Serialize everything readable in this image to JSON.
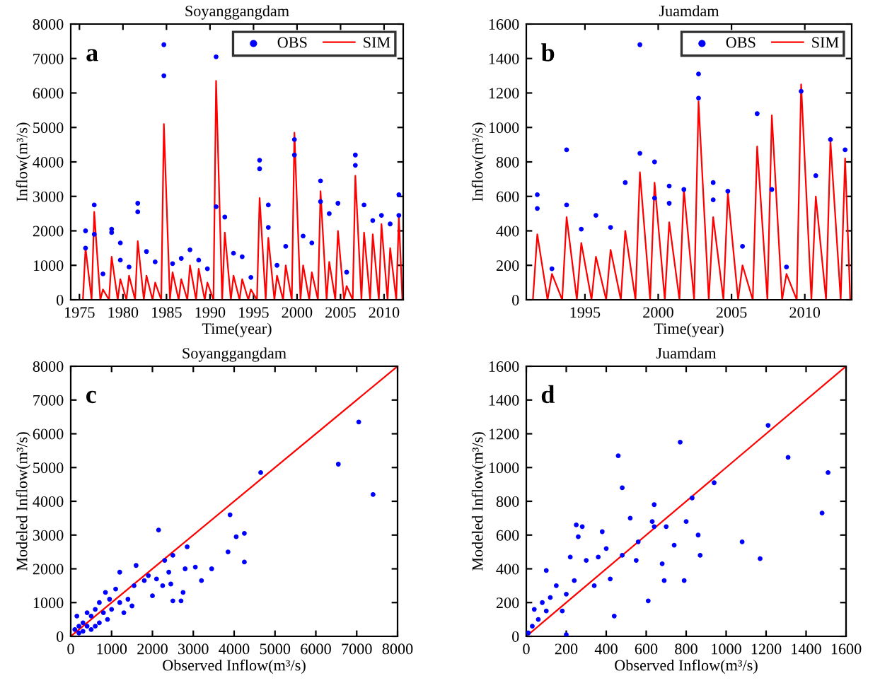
{
  "chart_data": [
    {
      "type": "line",
      "title": "Soyanggangdam",
      "xlabel": "Time(year)",
      "ylabel": "Inflow(m³/s)",
      "xlim": [
        1974,
        2012.2
      ],
      "xticks": [
        1975,
        1980,
        1985,
        1990,
        1995,
        2000,
        2005,
        2010
      ],
      "ylim": [
        0,
        8000
      ],
      "yticks": [
        0,
        1000,
        2000,
        3000,
        4000,
        5000,
        6000,
        7000,
        8000
      ],
      "grid": false,
      "legend": "top right",
      "annotations": [
        "a"
      ],
      "series": [
        {
          "name": "OBS",
          "type": "scatter",
          "color": "#0000ff",
          "marker": "circle",
          "x": [
            1975.7,
            1975.7,
            1976.7,
            1976.7,
            1977.7,
            1978.7,
            1978.7,
            1979.7,
            1979.7,
            1980.7,
            1981.7,
            1981.7,
            1982.7,
            1983.7,
            1984.7,
            1984.7,
            1985.7,
            1986.7,
            1987.7,
            1988.7,
            1989.7,
            1990.7,
            1990.7,
            1991.7,
            1992.7,
            1993.7,
            1994.7,
            1995.7,
            1995.7,
            1996.7,
            1996.7,
            1997.7,
            1998.7,
            1999.7,
            1999.7,
            2000.7,
            2001.7,
            2002.7,
            2002.7,
            2003.7,
            2004.7,
            2005.7,
            2006.7,
            2006.7,
            2007.7,
            2008.7,
            2009.7,
            2010.7,
            2011.7,
            2011.7
          ],
          "values": [
            2000,
            1500,
            2750,
            1900,
            750,
            2050,
            1950,
            1650,
            1150,
            950,
            2800,
            2550,
            1400,
            1100,
            7400,
            6500,
            1050,
            1200,
            1450,
            1150,
            900,
            7050,
            2700,
            2400,
            1350,
            1250,
            650,
            4050,
            3800,
            2750,
            2100,
            1000,
            1550,
            4650,
            4200,
            1850,
            1650,
            3450,
            2850,
            2500,
            2800,
            800,
            4200,
            3900,
            2750,
            2300,
            2450,
            2200,
            3050,
            2450
          ]
        },
        {
          "name": "SIM",
          "color": "#ff0000",
          "marker": "none",
          "x": [
            1975.4,
            1975.7,
            1976.4,
            1976.7,
            1977.4,
            1977.7,
            1978.4,
            1978.7,
            1979.4,
            1979.7,
            1980.4,
            1980.7,
            1981.4,
            1981.7,
            1982.4,
            1982.7,
            1983.4,
            1983.7,
            1984.4,
            1984.7,
            1985.4,
            1985.7,
            1986.4,
            1986.7,
            1987.4,
            1987.7,
            1988.4,
            1988.7,
            1989.4,
            1989.7,
            1990.4,
            1990.7,
            1991.4,
            1991.7,
            1992.4,
            1992.7,
            1993.4,
            1993.7,
            1994.4,
            1994.7,
            1995.4,
            1995.7,
            1996.4,
            1996.7,
            1997.4,
            1997.7,
            1998.4,
            1998.7,
            1999.4,
            1999.7,
            2000.4,
            2000.7,
            2001.4,
            2001.7,
            2002.4,
            2002.7,
            2003.4,
            2003.7,
            2004.4,
            2004.7,
            2005.4,
            2005.7,
            2006.4,
            2006.7,
            2007.4,
            2007.7,
            2008.4,
            2008.7,
            2009.4,
            2009.7,
            2010.4,
            2010.7,
            2011.4,
            2011.7,
            2012.1
          ],
          "values": [
            0,
            1500,
            0,
            2550,
            0,
            300,
            0,
            1250,
            0,
            600,
            0,
            700,
            0,
            1700,
            0,
            700,
            0,
            500,
            0,
            5100,
            0,
            800,
            0,
            600,
            0,
            1000,
            0,
            900,
            0,
            500,
            0,
            6350,
            0,
            1950,
            0,
            700,
            0,
            600,
            0,
            300,
            0,
            2950,
            0,
            1800,
            0,
            700,
            0,
            1000,
            0,
            4850,
            0,
            1000,
            0,
            800,
            0,
            3150,
            0,
            1100,
            0,
            2000,
            0,
            400,
            0,
            3600,
            0,
            1950,
            0,
            1900,
            0,
            2200,
            0,
            1500,
            0,
            2400,
            0
          ]
        }
      ]
    },
    {
      "type": "line",
      "title": "Juamdam",
      "xlabel": "Time(year)",
      "ylabel": "Inflow(m³/s)",
      "xlim": [
        1991,
        2013.2
      ],
      "xticks": [
        1995,
        2000,
        2005,
        2010
      ],
      "ylim": [
        0,
        1600
      ],
      "yticks": [
        0,
        200,
        400,
        600,
        800,
        1000,
        1200,
        1400,
        1600
      ],
      "grid": false,
      "legend": "top right",
      "annotations": [
        "b"
      ],
      "series": [
        {
          "name": "OBS",
          "type": "scatter",
          "color": "#0000ff",
          "marker": "circle",
          "x": [
            1991.75,
            1991.75,
            1992.75,
            1993.75,
            1993.75,
            1994.75,
            1995.75,
            1996.75,
            1997.75,
            1998.75,
            1998.75,
            1999.75,
            1999.75,
            2000.75,
            2000.75,
            2001.75,
            2002.75,
            2002.75,
            2003.75,
            2003.75,
            2004.75,
            2005.75,
            2006.75,
            2007.75,
            2008.75,
            2009.75,
            2010.75,
            2011.75,
            2012.75
          ],
          "values": [
            610,
            530,
            180,
            870,
            550,
            410,
            490,
            420,
            680,
            1480,
            850,
            800,
            590,
            660,
            560,
            640,
            1310,
            1170,
            680,
            580,
            630,
            310,
            1080,
            640,
            190,
            1210,
            720,
            930,
            870
          ]
        },
        {
          "name": "SIM",
          "color": "#ff0000",
          "marker": "none",
          "x": [
            1991.45,
            1991.75,
            1992.45,
            1992.75,
            1993.45,
            1993.75,
            1994.45,
            1994.75,
            1995.45,
            1995.75,
            1996.45,
            1996.75,
            1997.45,
            1997.75,
            1998.45,
            1998.75,
            1999.45,
            1999.75,
            2000.45,
            2000.75,
            2001.45,
            2001.75,
            2002.45,
            2002.75,
            2003.45,
            2003.75,
            2004.45,
            2004.75,
            2005.45,
            2005.75,
            2006.45,
            2006.75,
            2007.45,
            2007.75,
            2008.45,
            2008.75,
            2009.45,
            2009.75,
            2010.45,
            2010.75,
            2011.45,
            2011.75,
            2012.45,
            2012.75,
            2013.1
          ],
          "values": [
            0,
            380,
            0,
            150,
            0,
            480,
            0,
            330,
            0,
            250,
            0,
            290,
            0,
            400,
            0,
            740,
            0,
            680,
            0,
            450,
            0,
            640,
            0,
            1150,
            0,
            480,
            0,
            620,
            0,
            200,
            0,
            890,
            0,
            1070,
            0,
            150,
            0,
            1250,
            0,
            600,
            0,
            920,
            0,
            820,
            0
          ]
        }
      ]
    },
    {
      "type": "scatter",
      "title": "Soyanggangdam",
      "xlabel": "Observed Inflow(m³/s)",
      "ylabel": "Modeled Inflow(m³/s)",
      "xlim": [
        0,
        8000
      ],
      "xticks": [
        0,
        1000,
        2000,
        3000,
        4000,
        5000,
        6000,
        7000,
        8000
      ],
      "ylim": [
        0,
        8000
      ],
      "yticks": [
        0,
        1000,
        2000,
        3000,
        4000,
        5000,
        6000,
        7000,
        8000
      ],
      "grid": false,
      "annotations": [
        "c"
      ],
      "series": [
        {
          "color": "#0000ff",
          "marker": "circle",
          "x": [
            7400,
            7050,
            6550,
            4650,
            4250,
            4250,
            4050,
            3900,
            3850,
            3450,
            3200,
            3050,
            2850,
            2800,
            2750,
            2700,
            2500,
            2500,
            2450,
            2400,
            2300,
            2250,
            2150,
            2100,
            2000,
            1900,
            1800,
            1600,
            1550,
            1500,
            1400,
            1300,
            1200,
            1200,
            1100,
            1000,
            950,
            900,
            850,
            800,
            700,
            700,
            600,
            600,
            500,
            500,
            400,
            400,
            300,
            300,
            200,
            200,
            150,
            100
          ],
          "values": [
            4200,
            6350,
            5100,
            4850,
            3050,
            2200,
            2950,
            3600,
            2500,
            2000,
            1650,
            2050,
            2650,
            2000,
            1300,
            1050,
            2400,
            1050,
            1550,
            1900,
            2250,
            1500,
            3150,
            1700,
            1200,
            1800,
            1650,
            2100,
            1500,
            900,
            1100,
            700,
            1900,
            1000,
            1400,
            800,
            1100,
            500,
            1300,
            700,
            1000,
            400,
            800,
            300,
            600,
            200,
            700,
            300,
            400,
            150,
            300,
            100,
            600,
            200
          ]
        },
        {
          "type": "line",
          "color": "#ff0000",
          "marker": "none",
          "x": [
            0,
            8000
          ],
          "values": [
            0,
            8000
          ]
        }
      ]
    },
    {
      "type": "scatter",
      "title": "Juamdam",
      "xlabel": "Observed Inflow(m³/s)",
      "ylabel": "Modeled Inflow(m³/s)",
      "xlim": [
        0,
        1600
      ],
      "xticks": [
        0,
        200,
        400,
        600,
        800,
        1000,
        1200,
        1400,
        1600
      ],
      "ylim": [
        0,
        1600
      ],
      "yticks": [
        0,
        200,
        400,
        600,
        800,
        1000,
        1200,
        1400,
        1600
      ],
      "grid": false,
      "annotations": [
        "d"
      ],
      "series": [
        {
          "color": "#0000ff",
          "marker": "circle",
          "x": [
            1510,
            1480,
            1310,
            1210,
            1170,
            1080,
            940,
            870,
            860,
            830,
            800,
            790,
            770,
            740,
            700,
            690,
            680,
            640,
            640,
            630,
            610,
            560,
            550,
            520,
            480,
            480,
            460,
            440,
            420,
            400,
            380,
            360,
            340,
            300,
            280,
            260,
            250,
            240,
            220,
            200,
            180,
            150,
            120,
            100,
            100,
            80,
            60,
            40,
            30,
            10,
            200
          ],
          "values": [
            970,
            730,
            1060,
            1250,
            460,
            560,
            910,
            480,
            600,
            820,
            680,
            330,
            1150,
            540,
            650,
            330,
            430,
            780,
            650,
            680,
            210,
            560,
            450,
            700,
            880,
            480,
            1070,
            120,
            340,
            520,
            620,
            470,
            300,
            450,
            650,
            590,
            660,
            330,
            470,
            250,
            150,
            300,
            230,
            390,
            150,
            200,
            100,
            160,
            60,
            20,
            10
          ]
        },
        {
          "type": "line",
          "color": "#ff0000",
          "marker": "none",
          "x": [
            0,
            1600
          ],
          "values": [
            0,
            1600
          ]
        }
      ]
    }
  ]
}
